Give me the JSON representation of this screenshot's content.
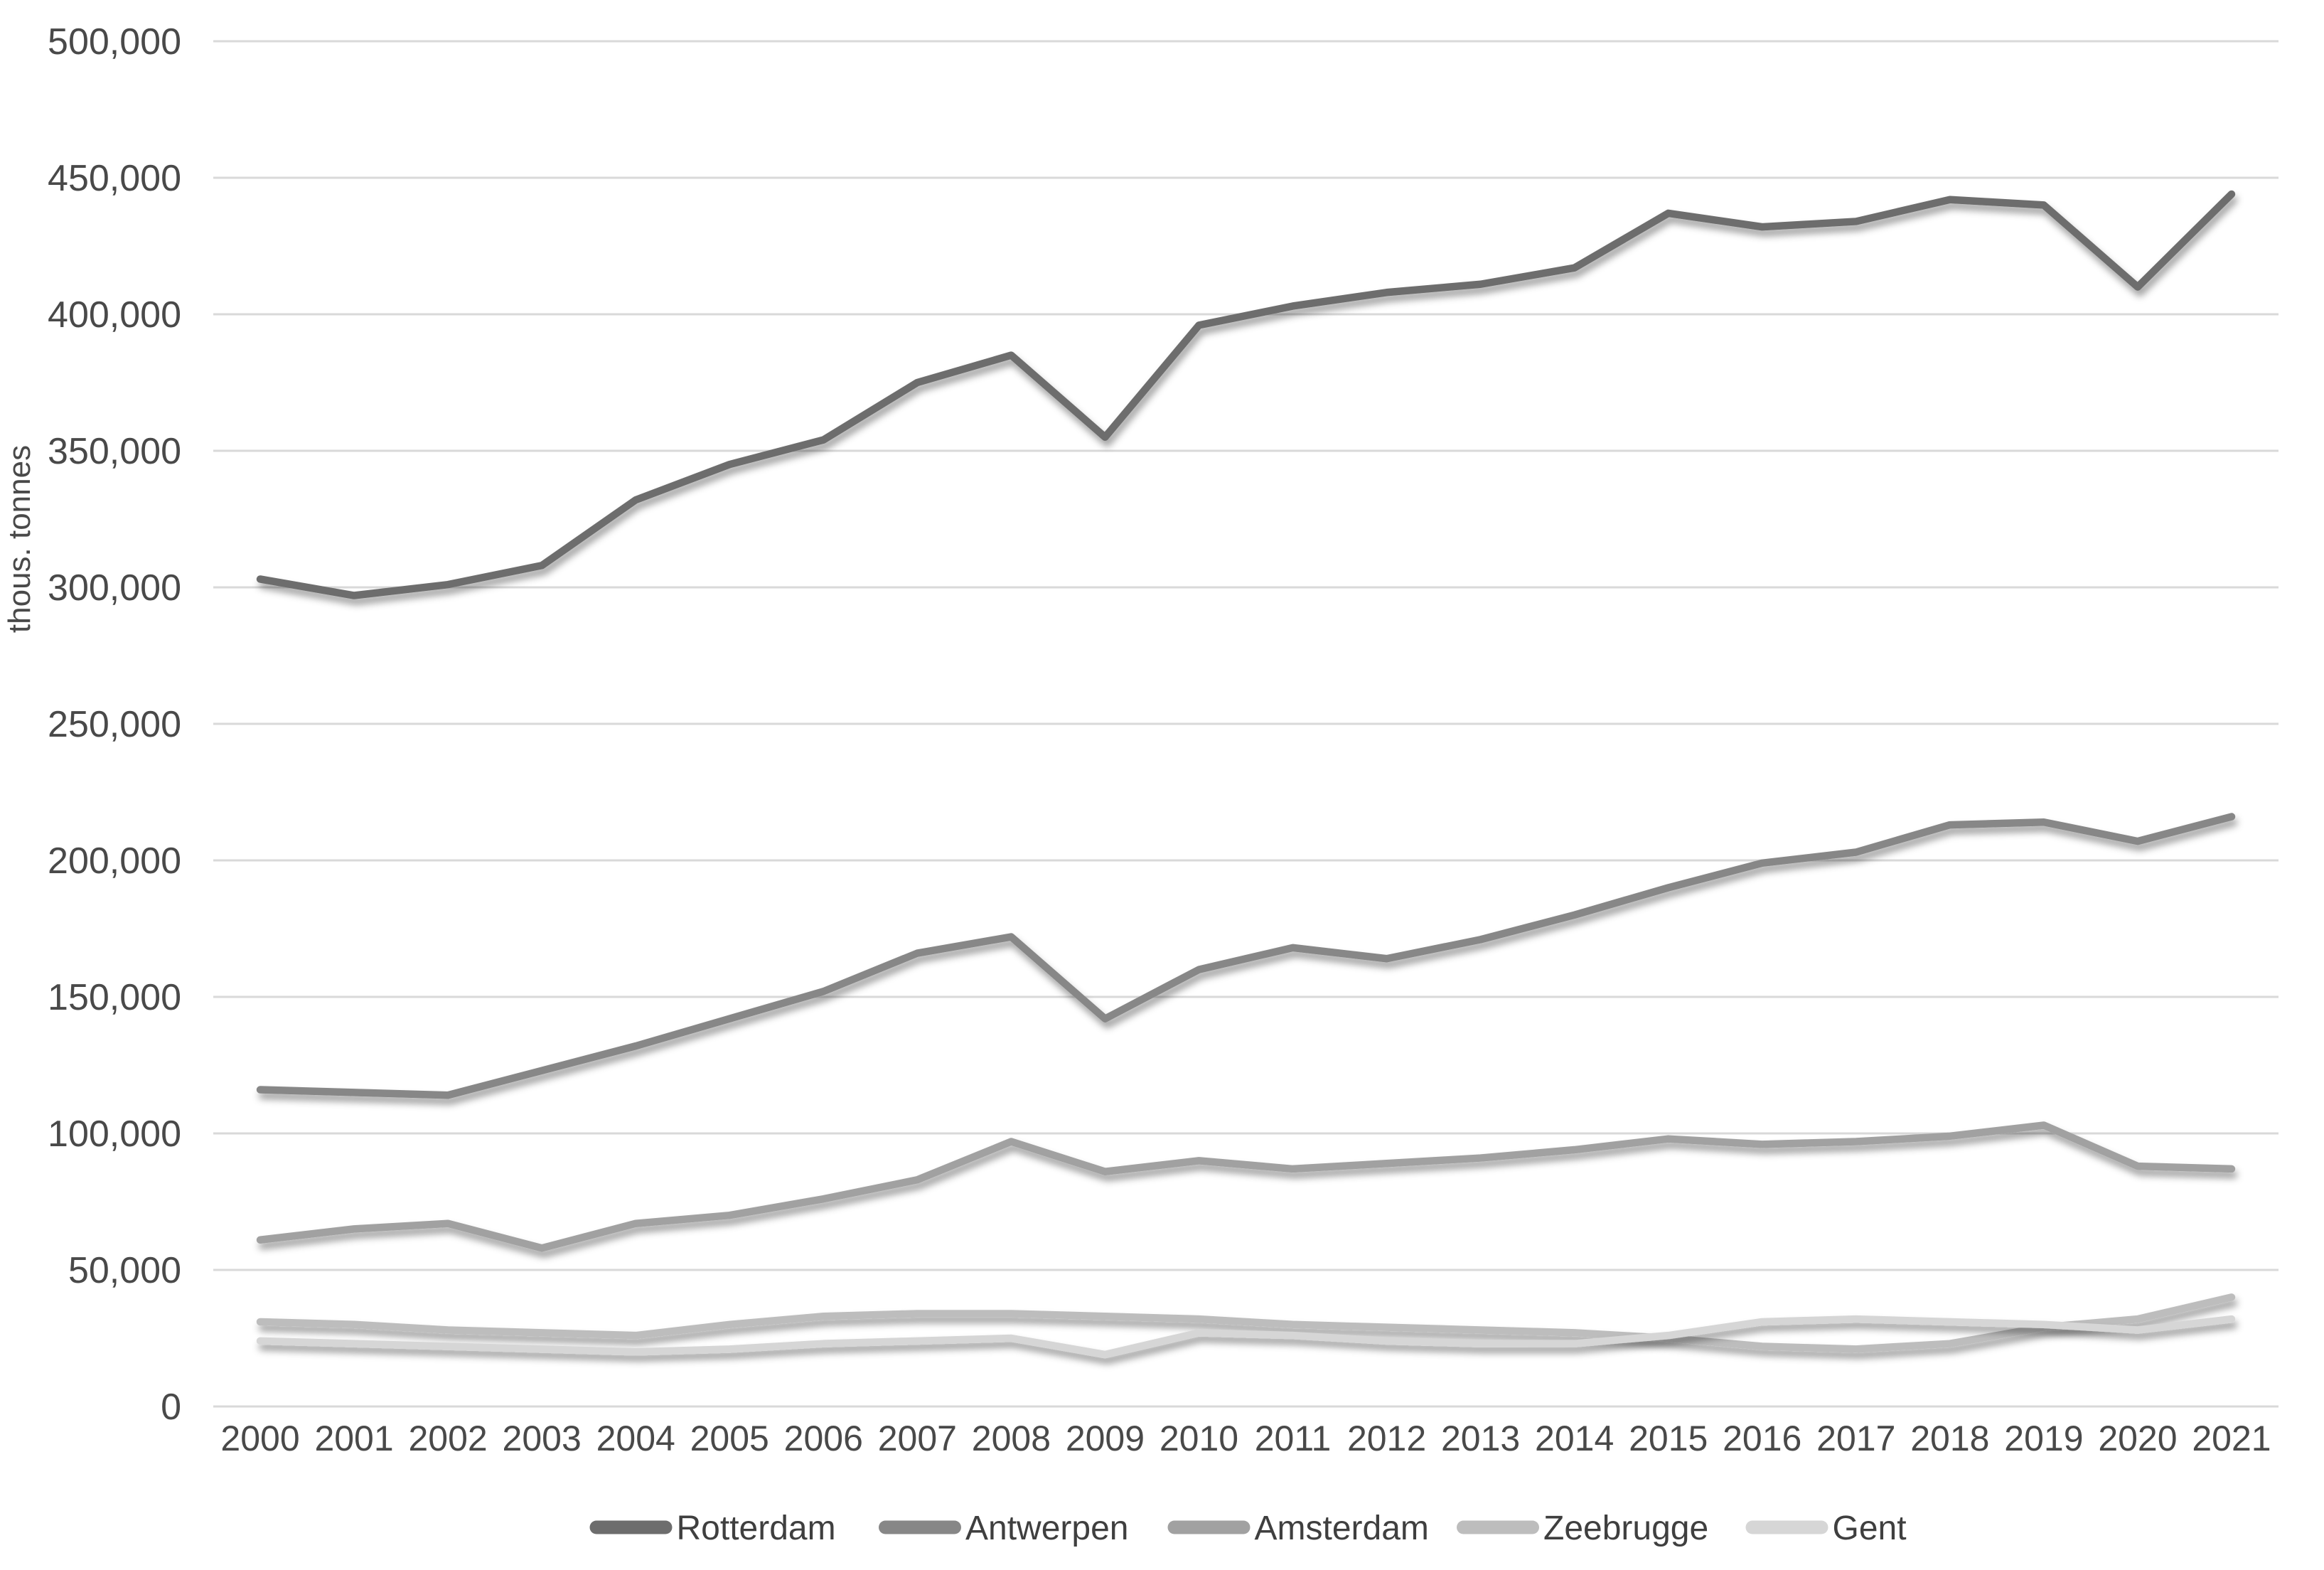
{
  "chart_data": {
    "type": "line",
    "title": "",
    "xlabel": "",
    "ylabel": "thous. tonnes",
    "grid": true,
    "legend_position": "bottom",
    "ylim": [
      0,
      500000
    ],
    "ytick_step": 50000,
    "ytick_labels": [
      "0",
      "50,000",
      "100,000",
      "150,000",
      "200,000",
      "250,000",
      "300,000",
      "350,000",
      "400,000",
      "450,000",
      "500,000"
    ],
    "categories": [
      "2000",
      "2001",
      "2002",
      "2003",
      "2004",
      "2005",
      "2006",
      "2007",
      "2008",
      "2009",
      "2010",
      "2011",
      "2012",
      "2013",
      "2014",
      "2015",
      "2016",
      "2017",
      "2018",
      "2019",
      "2020",
      "2021"
    ],
    "series": [
      {
        "name": "Rotterdam",
        "color": "#6d6d6d",
        "values": [
          303000,
          297000,
          301000,
          308000,
          332000,
          345000,
          354000,
          375000,
          385000,
          355000,
          396000,
          403000,
          408000,
          411000,
          417000,
          437000,
          432000,
          434000,
          442000,
          440000,
          410000,
          444000
        ]
      },
      {
        "name": "Antwerpen",
        "color": "#878787",
        "values": [
          116000,
          115000,
          114000,
          123000,
          132000,
          142000,
          152000,
          166000,
          172000,
          142000,
          160000,
          168000,
          164000,
          171000,
          180000,
          190000,
          199000,
          203000,
          213000,
          214000,
          207000,
          216000
        ]
      },
      {
        "name": "Amsterdam",
        "color": "#a1a1a1",
        "values": [
          61000,
          65000,
          67000,
          58000,
          67000,
          70000,
          76000,
          83000,
          97000,
          86000,
          90000,
          87000,
          89000,
          91000,
          94000,
          98000,
          96000,
          97000,
          99000,
          103000,
          88000,
          87000
        ]
      },
      {
        "name": "Zeebrugge",
        "color": "#bdbdbd",
        "values": [
          31000,
          30000,
          28000,
          27000,
          26000,
          30000,
          33000,
          34000,
          34000,
          33000,
          32000,
          30000,
          29000,
          28000,
          27000,
          25000,
          22000,
          21000,
          23000,
          29000,
          32000,
          40000
        ]
      },
      {
        "name": "Gent",
        "color": "#d6d6d6",
        "values": [
          24000,
          23000,
          22000,
          21000,
          20000,
          21000,
          23000,
          24000,
          25000,
          19000,
          27000,
          26000,
          24000,
          23000,
          23000,
          26000,
          31000,
          32000,
          31000,
          30000,
          28000,
          32000
        ]
      }
    ],
    "style": {
      "gridline_color": "#d9d9d9",
      "tick_text_color": "#494949",
      "background": "#ffffff",
      "line_width": 10.5
    }
  }
}
